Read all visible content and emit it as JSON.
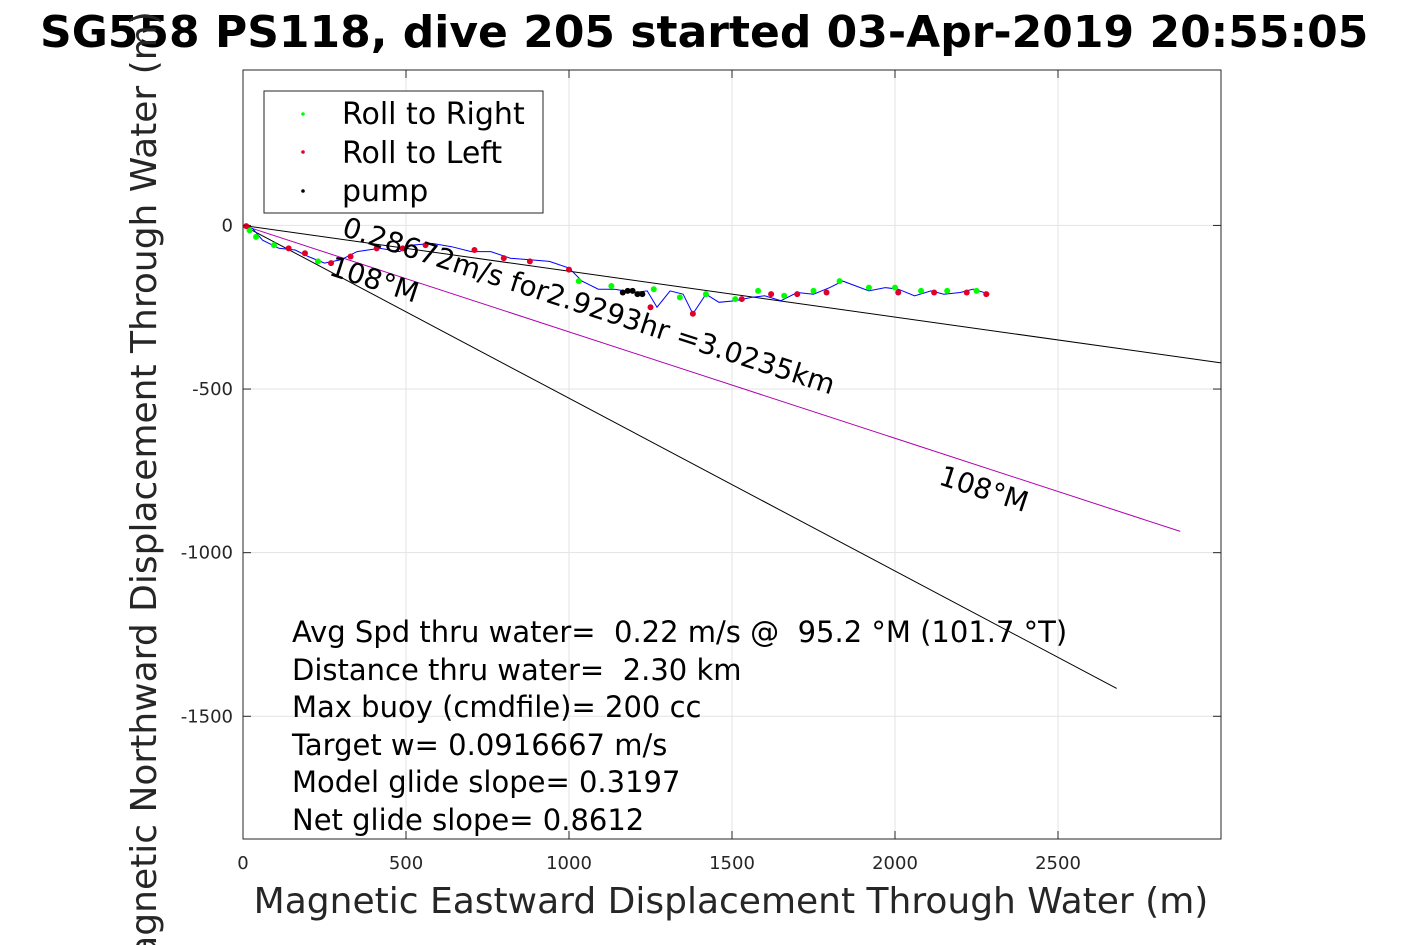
{
  "chart_data": {
    "type": "scatter",
    "title": "SG558 PS118, dive 205 started 03-Apr-2019 20:55:05",
    "xlabel": "Magnetic Eastward Displacement Through Water (m)",
    "ylabel": "Magnetic Northward Displacement Through Water (m)",
    "xlim": [
      0,
      3000
    ],
    "ylim": [
      -1875,
      475
    ],
    "xticks": [
      0,
      500,
      1000,
      1500,
      2000,
      2500
    ],
    "yticks": [
      0,
      -500,
      -1000,
      -1500
    ],
    "grid": true,
    "legend_position": "top-left",
    "series": [
      {
        "name": "Roll to Right",
        "color": "#00ff00",
        "marker": "dot",
        "points": [
          [
            20,
            -15
          ],
          [
            40,
            -35
          ],
          [
            95,
            -60
          ],
          [
            230,
            -110
          ],
          [
            1030,
            -170
          ],
          [
            1130,
            -185
          ],
          [
            1260,
            -195
          ],
          [
            1340,
            -220
          ],
          [
            1420,
            -210
          ],
          [
            1510,
            -225
          ],
          [
            1580,
            -200
          ],
          [
            1660,
            -215
          ],
          [
            1750,
            -200
          ],
          [
            1830,
            -170
          ],
          [
            1920,
            -190
          ],
          [
            2000,
            -190
          ],
          [
            2080,
            -200
          ],
          [
            2160,
            -200
          ],
          [
            2250,
            -200
          ]
        ]
      },
      {
        "name": "Roll to Left",
        "color": "#e0002a",
        "marker": "dot",
        "points": [
          [
            10,
            -2
          ],
          [
            140,
            -70
          ],
          [
            190,
            -85
          ],
          [
            270,
            -115
          ],
          [
            330,
            -95
          ],
          [
            410,
            -70
          ],
          [
            490,
            -70
          ],
          [
            560,
            -60
          ],
          [
            710,
            -75
          ],
          [
            800,
            -100
          ],
          [
            880,
            -110
          ],
          [
            1000,
            -135
          ],
          [
            1250,
            -250
          ],
          [
            1380,
            -270
          ],
          [
            1530,
            -225
          ],
          [
            1620,
            -210
          ],
          [
            1700,
            -210
          ],
          [
            1790,
            -205
          ],
          [
            2010,
            -205
          ],
          [
            2120,
            -205
          ],
          [
            2220,
            -205
          ],
          [
            2280,
            -210
          ]
        ]
      },
      {
        "name": "pump",
        "color": "#000000",
        "marker": "dot",
        "points": [
          [
            1165,
            -205
          ],
          [
            1180,
            -200
          ],
          [
            1195,
            -200
          ],
          [
            1210,
            -210
          ],
          [
            1225,
            -210
          ]
        ]
      }
    ],
    "track": {
      "color": "#0000ff",
      "points": [
        [
          0,
          0
        ],
        [
          30,
          -10
        ],
        [
          60,
          -45
        ],
        [
          110,
          -70
        ],
        [
          160,
          -75
        ],
        [
          200,
          -95
        ],
        [
          250,
          -115
        ],
        [
          300,
          -105
        ],
        [
          350,
          -80
        ],
        [
          420,
          -70
        ],
        [
          480,
          -80
        ],
        [
          520,
          -60
        ],
        [
          580,
          -55
        ],
        [
          640,
          -65
        ],
        [
          700,
          -80
        ],
        [
          760,
          -80
        ],
        [
          820,
          -100
        ],
        [
          880,
          -105
        ],
        [
          940,
          -110
        ],
        [
          1000,
          -130
        ],
        [
          1040,
          -170
        ],
        [
          1090,
          -195
        ],
        [
          1140,
          -195
        ],
        [
          1200,
          -205
        ],
        [
          1240,
          -200
        ],
        [
          1270,
          -250
        ],
        [
          1310,
          -200
        ],
        [
          1350,
          -210
        ],
        [
          1380,
          -270
        ],
        [
          1420,
          -210
        ],
        [
          1460,
          -235
        ],
        [
          1510,
          -230
        ],
        [
          1560,
          -220
        ],
        [
          1600,
          -215
        ],
        [
          1650,
          -230
        ],
        [
          1700,
          -205
        ],
        [
          1750,
          -210
        ],
        [
          1800,
          -190
        ],
        [
          1840,
          -170
        ],
        [
          1880,
          -185
        ],
        [
          1920,
          -200
        ],
        [
          1970,
          -190
        ],
        [
          2010,
          -195
        ],
        [
          2060,
          -215
        ],
        [
          2110,
          -200
        ],
        [
          2150,
          -210
        ],
        [
          2200,
          -205
        ],
        [
          2240,
          -195
        ],
        [
          2290,
          -210
        ]
      ]
    },
    "lines": [
      {
        "color": "#000000",
        "points": [
          [
            0,
            0
          ],
          [
            3000,
            -420
          ]
        ]
      },
      {
        "color": "#000000",
        "points": [
          [
            0,
            0
          ],
          [
            2680,
            -1415
          ]
        ]
      },
      {
        "color": "#b000b0",
        "points": [
          [
            0,
            0
          ],
          [
            2875,
            -935
          ]
        ]
      }
    ],
    "annotations": [
      {
        "text": "0.28672m/s for2.9293hr =3.0235km",
        "x": 300,
        "y": -30,
        "rotate": 18
      },
      {
        "text": "108°M",
        "x": 260,
        "y": -150,
        "rotate": 18
      },
      {
        "text": "108°M",
        "x": 2130,
        "y": -790,
        "rotate": 18
      }
    ],
    "stats": [
      "Avg Spd thru water=  0.22 m/s @  95.2 °M (101.7 °T)",
      "Distance thru water=  2.30 km",
      "Max buoy (cmdfile)= 200 cc",
      "Target w= 0.0916667 m/s",
      "Model glide slope= 0.3197",
      "Net glide slope= 0.8612"
    ]
  }
}
